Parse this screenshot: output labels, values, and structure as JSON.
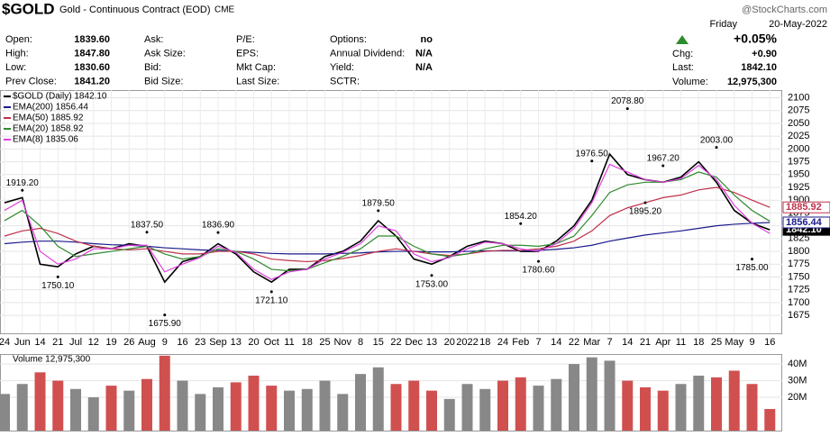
{
  "header": {
    "symbol": "$GOLD",
    "description": "Gold - Continuous Contract (EOD)",
    "exchange": "CME",
    "brand": "@StockCharts.com",
    "quote": [
      [
        "Open:",
        "1839.60",
        "Ask:",
        "",
        "P/E:",
        "",
        "Options:",
        "no"
      ],
      [
        "High:",
        "1847.80",
        "Ask Size:",
        "",
        "EPS:",
        "",
        "Annual Dividend:",
        "N/A"
      ],
      [
        "Low:",
        "1830.60",
        "Bid:",
        "",
        "Mkt Cap:",
        "",
        "Yield:",
        "N/A"
      ],
      [
        "Prev Close:",
        "1841.20",
        "Bid Size:",
        "",
        "Last Size:",
        "",
        "SCTR:",
        ""
      ]
    ],
    "day": "Friday",
    "date": "20-May-2022",
    "pct": "+0.05%",
    "chg_label": "Chg:",
    "chg": "+0.90",
    "last_label": "Last:",
    "last": "1842.10",
    "volume_label": "Volume:",
    "volume": "12,975,300"
  },
  "chart_data": {
    "type": "line",
    "categories": [
      "24",
      "Jun",
      "14",
      "21",
      "Jul",
      "12",
      "19",
      "26",
      "Aug",
      "9",
      "16",
      "23",
      "Sep",
      "13",
      "20",
      "Oct",
      "11",
      "18",
      "25",
      "Nov",
      "8",
      "15",
      "22",
      "Dec",
      "13",
      "20",
      "2022",
      "18",
      "24",
      "Feb",
      "7",
      "14",
      "22",
      "Mar",
      "7",
      "14",
      "21",
      "Apr",
      "11",
      "18",
      "25",
      "May",
      "9",
      "16"
    ],
    "ylim": [
      1640,
      2115
    ],
    "yticks": [
      1675,
      1700,
      1725,
      1750,
      1775,
      1800,
      1825,
      1850,
      1875,
      1900,
      1925,
      1950,
      1975,
      2000,
      2025,
      2050,
      2075,
      2100
    ],
    "grid": true,
    "series": [
      {
        "name": "$GOLD (Daily) 1842.10",
        "color": "#000000",
        "last_label": "1842.10",
        "values": [
          1895,
          1905,
          1775,
          1770,
          1795,
          1810,
          1805,
          1815,
          1810,
          1740,
          1780,
          1790,
          1815,
          1795,
          1760,
          1740,
          1765,
          1765,
          1790,
          1800,
          1820,
          1860,
          1830,
          1785,
          1775,
          1790,
          1810,
          1820,
          1815,
          1800,
          1800,
          1820,
          1850,
          1900,
          1990,
          1950,
          1940,
          1935,
          1945,
          1975,
          1935,
          1880,
          1855,
          1842.1
        ]
      },
      {
        "name": "EMA(200) 1856.44",
        "color": "#1a1a8c",
        "values": [
          1815,
          1818,
          1820,
          1820,
          1818,
          1815,
          1813,
          1812,
          1810,
          1807,
          1805,
          1803,
          1802,
          1800,
          1798,
          1796,
          1795,
          1795,
          1795,
          1796,
          1797,
          1799,
          1800,
          1800,
          1799,
          1799,
          1800,
          1801,
          1801,
          1801,
          1802,
          1804,
          1807,
          1812,
          1820,
          1826,
          1832,
          1836,
          1840,
          1845,
          1850,
          1853,
          1855,
          1856.44
        ]
      },
      {
        "name": "EMA(50) 1885.92",
        "color": "#c0304a",
        "values": [
          1830,
          1840,
          1845,
          1835,
          1820,
          1810,
          1805,
          1803,
          1805,
          1800,
          1795,
          1795,
          1800,
          1800,
          1795,
          1785,
          1782,
          1780,
          1782,
          1786,
          1792,
          1800,
          1805,
          1800,
          1795,
          1792,
          1795,
          1800,
          1802,
          1802,
          1805,
          1810,
          1820,
          1840,
          1870,
          1885,
          1895,
          1905,
          1910,
          1920,
          1925,
          1915,
          1900,
          1885.92
        ]
      },
      {
        "name": "EMA(20) 1858.92",
        "color": "#2e8b2e",
        "values": [
          1860,
          1880,
          1850,
          1810,
          1790,
          1795,
          1800,
          1805,
          1810,
          1795,
          1785,
          1790,
          1805,
          1800,
          1785,
          1765,
          1762,
          1765,
          1778,
          1790,
          1805,
          1830,
          1830,
          1810,
          1795,
          1790,
          1795,
          1805,
          1812,
          1812,
          1810,
          1815,
          1830,
          1870,
          1915,
          1930,
          1935,
          1935,
          1940,
          1955,
          1945,
          1910,
          1880,
          1858.92
        ]
      },
      {
        "name": "EMA(8) 1835.06",
        "color": "#e040e0",
        "values": [
          1880,
          1900,
          1800,
          1775,
          1785,
          1805,
          1805,
          1812,
          1812,
          1760,
          1775,
          1788,
          1810,
          1798,
          1765,
          1745,
          1760,
          1765,
          1785,
          1798,
          1815,
          1850,
          1840,
          1795,
          1780,
          1788,
          1805,
          1818,
          1815,
          1805,
          1800,
          1815,
          1845,
          1895,
          1970,
          1955,
          1940,
          1935,
          1942,
          1968,
          1940,
          1890,
          1855,
          1835.06
        ]
      }
    ],
    "annotations": [
      {
        "index": 1,
        "value": 1919.2,
        "label": "1919.20"
      },
      {
        "index": 3,
        "value": 1750.1,
        "label": "1750.10"
      },
      {
        "index": 8,
        "value": 1837.5,
        "label": "1837.50"
      },
      {
        "index": 9,
        "value": 1675.9,
        "label": "1675.90"
      },
      {
        "index": 12,
        "value": 1836.9,
        "label": "1836.90"
      },
      {
        "index": 15,
        "value": 1721.1,
        "label": "1721.10"
      },
      {
        "index": 21,
        "value": 1879.5,
        "label": "1879.50"
      },
      {
        "index": 24,
        "value": 1753,
        "label": "1753.00"
      },
      {
        "index": 29,
        "value": 1854.2,
        "label": "1854.20"
      },
      {
        "index": 30,
        "value": 1780.6,
        "label": "1780.60"
      },
      {
        "index": 33,
        "value": 1976.5,
        "label": "1976.50"
      },
      {
        "index": 35,
        "value": 2078.8,
        "label": "2078.80"
      },
      {
        "index": 36,
        "value": 1895.2,
        "label": "1895.20"
      },
      {
        "index": 37,
        "value": 1967.2,
        "label": "1967.20"
      },
      {
        "index": 40,
        "value": 2003,
        "label": "2003.00"
      },
      {
        "index": 42,
        "value": 1785,
        "label": "1785.00"
      }
    ],
    "volume": {
      "name": "Volume 12,975,300",
      "up_color": "#888888",
      "down_color": "#d05050",
      "ylim": [
        0,
        46000000
      ],
      "yticks": [
        {
          "value": 20000000,
          "label": "20M"
        },
        {
          "value": 30000000,
          "label": "30M"
        },
        {
          "value": 40000000,
          "label": "40M"
        }
      ],
      "values": [
        22000000,
        28000000,
        35000000,
        30000000,
        25000000,
        20000000,
        27000000,
        24000000,
        31000000,
        45000000,
        30000000,
        22000000,
        26000000,
        29000000,
        33000000,
        27000000,
        24000000,
        25000000,
        30000000,
        22000000,
        34000000,
        38000000,
        28000000,
        30000000,
        24000000,
        19000000,
        28000000,
        25000000,
        30000000,
        32000000,
        27000000,
        31000000,
        40000000,
        44000000,
        42000000,
        30000000,
        26000000,
        24000000,
        28000000,
        33000000,
        32000000,
        36000000,
        28000000,
        12975300
      ]
    }
  }
}
